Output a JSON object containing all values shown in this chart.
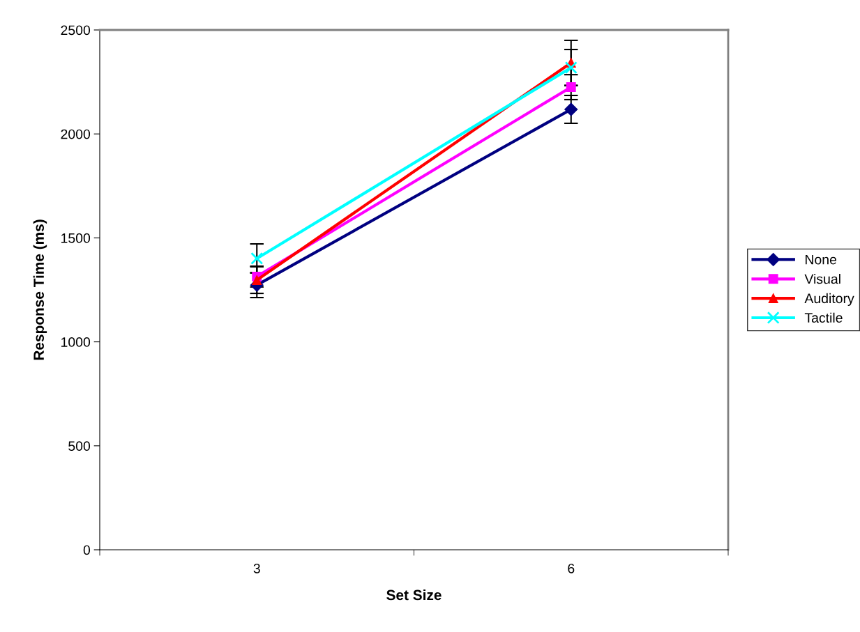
{
  "chart_data": {
    "type": "line",
    "xlabel": "Set Size",
    "ylabel": "Response Time (ms)",
    "categories": [
      "3",
      "6"
    ],
    "ylim": [
      0,
      2500
    ],
    "yticks": [
      0,
      500,
      1000,
      1500,
      2000,
      2500
    ],
    "grid": false,
    "legend": "right",
    "series": [
      {
        "name": "None",
        "color": "#000080",
        "marker": "diamond",
        "values": [
          1273,
          2118
        ],
        "errors": [
          60,
          67
        ]
      },
      {
        "name": "Visual",
        "color": "#ff00ff",
        "marker": "square",
        "values": [
          1314,
          2225
        ],
        "errors": [
          50,
          60
        ]
      },
      {
        "name": "Auditory",
        "color": "#ff0000",
        "marker": "triangle",
        "values": [
          1297,
          2342
        ],
        "errors": [
          64,
          108
        ]
      },
      {
        "name": "Tactile",
        "color": "#00ffff",
        "marker": "cross",
        "values": [
          1401,
          2319
        ],
        "errors": [
          70,
          87
        ]
      }
    ]
  }
}
